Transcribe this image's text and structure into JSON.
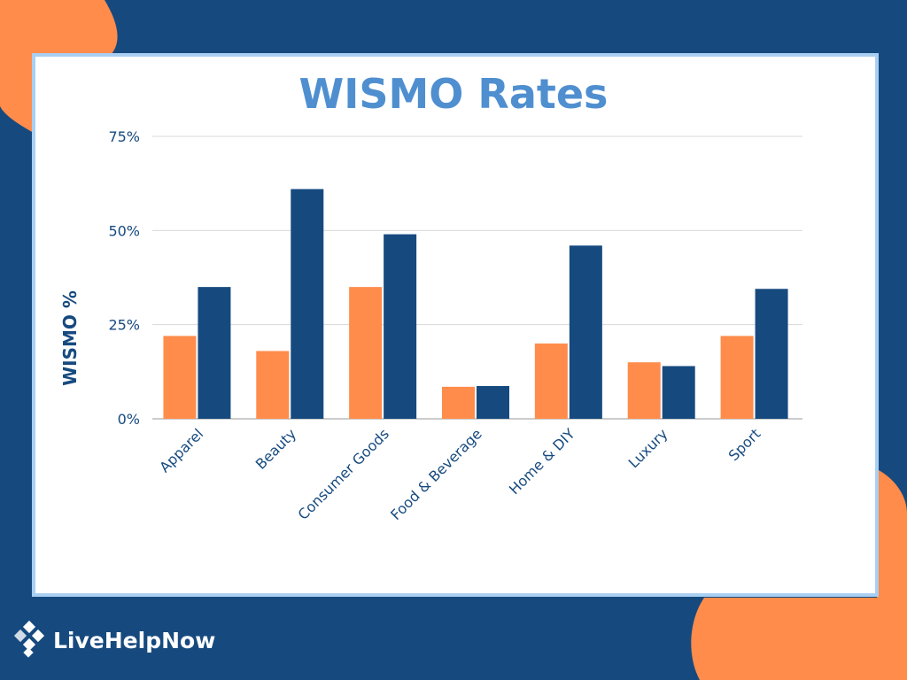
{
  "brand": {
    "name": "LiveHelpNow",
    "logo_icon": "diamond-cluster-icon"
  },
  "colors": {
    "background": "#164a7f",
    "accent_orange": "#ff8c4b",
    "card_border": "#a9cff2",
    "title": "#4f8fd0",
    "series_blue": "#164a7f",
    "series_orange": "#ff8c4b"
  },
  "chart_data": {
    "type": "bar",
    "title": "WISMO Rates",
    "xlabel": "",
    "ylabel": "WISMO %",
    "ylim": [
      0,
      75
    ],
    "yticks": [
      "0%",
      "25%",
      "50%",
      "75%"
    ],
    "ytick_values": [
      0,
      25,
      50,
      75
    ],
    "grid": true,
    "legend": "none",
    "categories": [
      "Apparel",
      "Beauty",
      "Consumer Goods",
      "Food & Beverage",
      "Home & DIY",
      "Luxury",
      "Sport"
    ],
    "series": [
      {
        "color": "#ff8c4b",
        "values": [
          22,
          18,
          35,
          8.5,
          20,
          15,
          22
        ]
      },
      {
        "color": "#164a7f",
        "values": [
          35,
          61,
          49,
          8.7,
          46,
          14,
          34.5
        ]
      }
    ]
  }
}
